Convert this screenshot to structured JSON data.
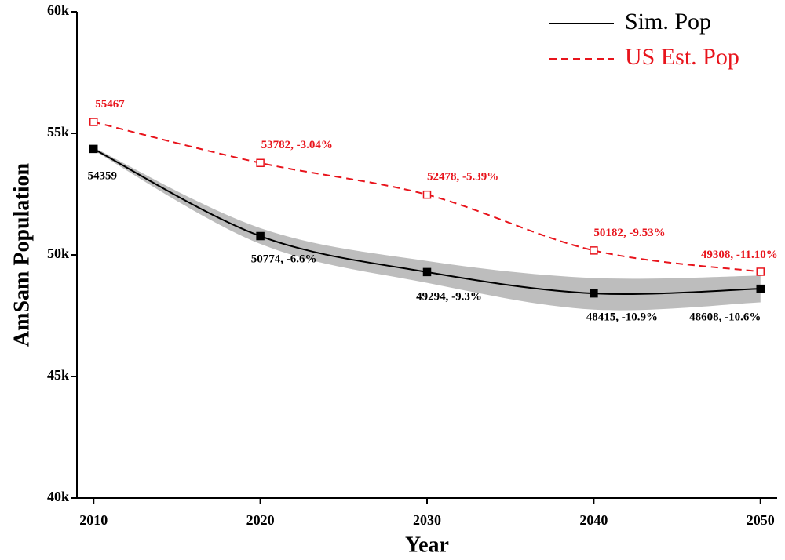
{
  "chart_data": {
    "type": "line",
    "x_label": "Year",
    "y_label": "AmSam Population",
    "x": [
      2010,
      2020,
      2030,
      2040,
      2050
    ],
    "xlim": [
      2009,
      2051
    ],
    "xticks": [
      2010,
      2020,
      2030,
      2040,
      2050
    ],
    "ylim": [
      40000,
      60000
    ],
    "yticks": [
      {
        "value": 40000,
        "label": "40k"
      },
      {
        "value": 45000,
        "label": "45k"
      },
      {
        "value": 50000,
        "label": "50k"
      },
      {
        "value": 55000,
        "label": "55k"
      },
      {
        "value": 60000,
        "label": "60k"
      }
    ],
    "legend": "top-right",
    "series": [
      {
        "name": "Sim. Pop",
        "color": "#000000",
        "dash": false,
        "marker_filled": true,
        "values": [
          54359,
          50774,
          49294,
          48415,
          48608
        ],
        "value_labels": [
          "54359",
          "50774, -6.6%",
          "49294, -9.3%",
          "48415, -10.9%",
          "48608, -10.6%"
        ],
        "band_color": "#bdbdbd",
        "band_lower": [
          54300,
          50450,
          48850,
          47750,
          48050
        ],
        "band_upper": [
          54420,
          51100,
          49750,
          49050,
          49150
        ]
      },
      {
        "name": "US Est. Pop",
        "color": "#e8141c",
        "dash": true,
        "marker_filled": false,
        "values": [
          55467,
          53782,
          52478,
          50182,
          49308
        ],
        "value_labels": [
          "55467",
          "53782, -3.04%",
          "52478, -5.39%",
          "50182, -9.53%",
          "49308, -11.10%"
        ]
      }
    ]
  }
}
